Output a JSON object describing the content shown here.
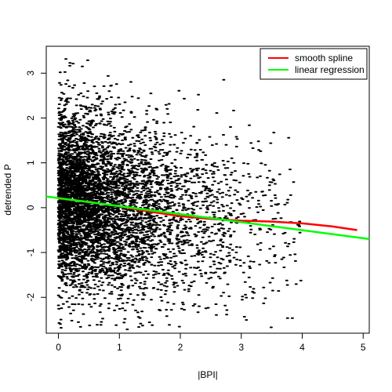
{
  "chart_data": {
    "type": "scatter",
    "xlabel": "|BPI|",
    "ylabel": "detrended P",
    "xlim": [
      -0.2,
      5.1
    ],
    "ylim": [
      -2.8,
      3.6
    ],
    "x_ticks": [
      0,
      1,
      2,
      3,
      4,
      5
    ],
    "y_ticks": [
      -2,
      -1,
      0,
      1,
      2,
      3
    ],
    "grid": false,
    "legend_position": "top-right",
    "legend": [
      {
        "label": "smooth spline",
        "color": "#ff0000"
      },
      {
        "label": "linear regression",
        "color": "#00ff00"
      }
    ],
    "series": [
      {
        "name": "smooth spline",
        "type": "line",
        "color": "#ff0000",
        "x": [
          0.0,
          0.25,
          0.5,
          0.75,
          1.0,
          1.25,
          1.5,
          1.75,
          2.0,
          2.5,
          3.0,
          3.5,
          4.0,
          4.5,
          4.9
        ],
        "y": [
          0.2,
          0.17,
          0.13,
          0.08,
          0.03,
          -0.03,
          -0.09,
          -0.14,
          -0.19,
          -0.25,
          -0.29,
          -0.31,
          -0.35,
          -0.42,
          -0.5
        ]
      },
      {
        "name": "linear regression",
        "type": "line",
        "color": "#00ff00",
        "x": [
          -0.2,
          5.1
        ],
        "y": [
          0.25,
          -0.7
        ]
      }
    ]
  }
}
